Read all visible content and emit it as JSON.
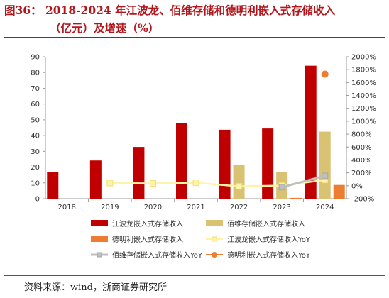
{
  "header": {
    "title_line1": "图36： 2018-2024 年江波龙、佰维存储和德明利嵌入式存储收入",
    "title_line2": "（亿元）及增速（%）"
  },
  "footer": {
    "source_label": "资料来源：",
    "source_text": "wind，浙商证券研究所"
  },
  "chart_data": {
    "type": "bar",
    "categories": [
      "2018",
      "2019",
      "2020",
      "2021",
      "2022",
      "2023",
      "2024"
    ],
    "left_axis": {
      "min": 0,
      "max": 90,
      "step": 10
    },
    "right_axis": {
      "min": -200,
      "max": 2000,
      "step": 200,
      "suffix": "%"
    },
    "series": [
      {
        "name": "江波龙嵌入式存储收入",
        "kind": "bar",
        "axis": "left",
        "color": "#c00000",
        "values": [
          17,
          24.2,
          32.8,
          48,
          43.7,
          44.5,
          84.3
        ]
      },
      {
        "name": "佰维存储嵌入式存储收入",
        "kind": "bar",
        "axis": "left",
        "color": "#d9c272",
        "values": [
          null,
          null,
          null,
          null,
          21.6,
          16.8,
          42.5
        ]
      },
      {
        "name": "德明利嵌入式存储收入",
        "kind": "bar",
        "axis": "left",
        "color": "#ed7d31",
        "values": [
          null,
          null,
          null,
          null,
          null,
          0.5,
          8.7
        ]
      },
      {
        "name": "江波龙嵌入式存储收入YoY",
        "kind": "line",
        "axis": "right",
        "color": "#fff3a8",
        "values": [
          null,
          42,
          36,
          46,
          -9,
          2,
          90
        ]
      },
      {
        "name": "佰维存储嵌入式存储收入YoY",
        "kind": "line",
        "axis": "right",
        "color": "#bfbfbf",
        "values": [
          null,
          null,
          null,
          null,
          null,
          -22,
          153
        ]
      },
      {
        "name": "德明利嵌入式存储收入YoY",
        "kind": "line",
        "axis": "right",
        "color": "#ed7d31",
        "values": [
          null,
          null,
          null,
          null,
          null,
          null,
          1730
        ]
      }
    ],
    "legend": "bottom"
  }
}
